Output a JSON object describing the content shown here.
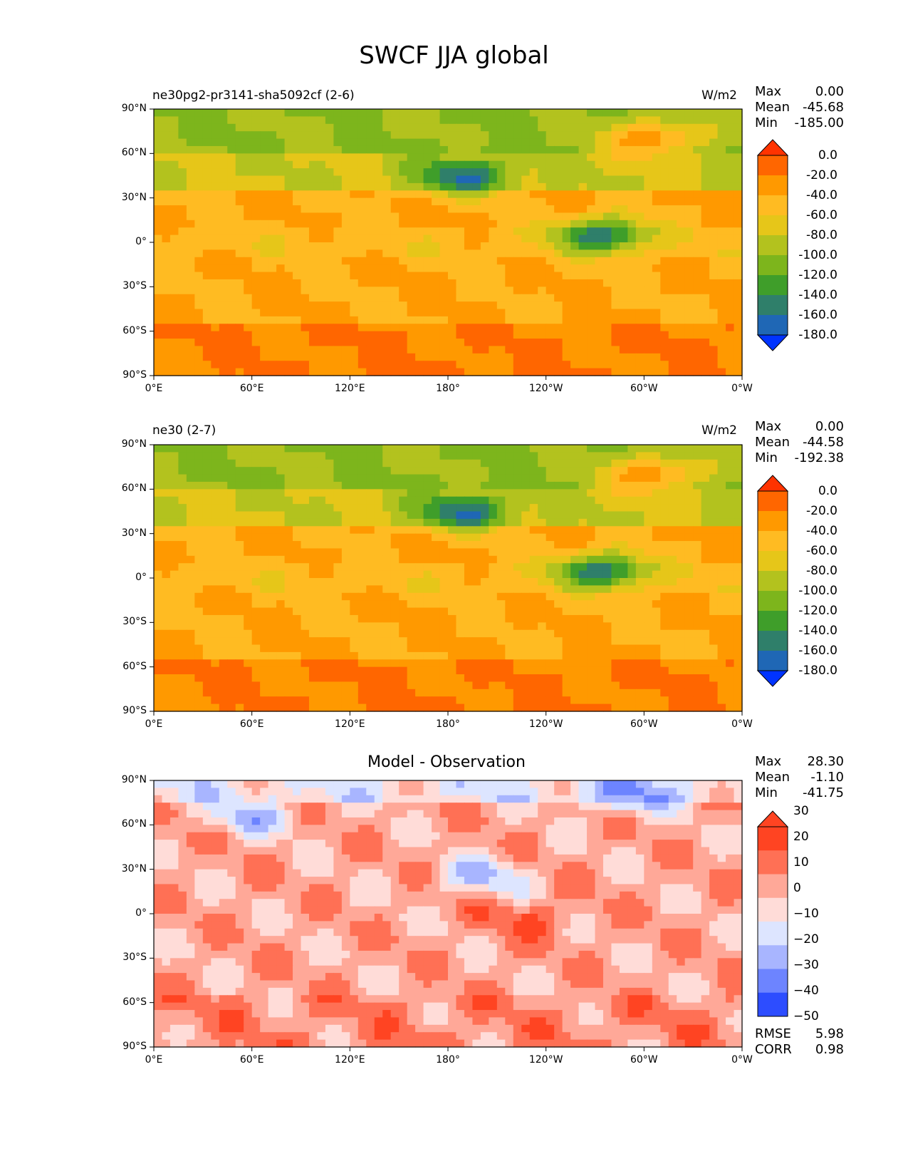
{
  "figure": {
    "title": "SWCF JJA global"
  },
  "axes": {
    "lat_ticks": [
      "90°N",
      "60°N",
      "30°N",
      "0°",
      "30°S",
      "60°S",
      "90°S"
    ],
    "lon_ticks": [
      "0°E",
      "60°E",
      "120°E",
      "180°",
      "120°W",
      "60°W",
      "0°W"
    ]
  },
  "panels": [
    {
      "title": "ne30pg2-pr3141-sha5092cf (2-6)",
      "units": "W/m2",
      "stats": {
        "max_label": "Max",
        "max": "0.00",
        "mean_label": "Mean",
        "mean": "-45.68",
        "min_label": "Min",
        "min": "-185.00"
      },
      "colorbar": {
        "labels": [
          "0.0",
          "-20.0",
          "-40.0",
          "-60.0",
          "-80.0",
          "-100.0",
          "-120.0",
          "-140.0",
          "-160.0",
          "-180.0"
        ],
        "colors": [
          "#ff3300",
          "#ff6600",
          "#ff9900",
          "#ffbb22",
          "#e6c619",
          "#b3c21e",
          "#7db51c",
          "#3f9e2a",
          "#2f7f6a",
          "#1f67b5",
          "#0033ff"
        ]
      }
    },
    {
      "title": "ne30 (2-7)",
      "units": "W/m2",
      "stats": {
        "max_label": "Max",
        "max": "0.00",
        "mean_label": "Mean",
        "mean": "-44.58",
        "min_label": "Min",
        "min": "-192.38"
      },
      "colorbar": {
        "labels": [
          "0.0",
          "-20.0",
          "-40.0",
          "-60.0",
          "-80.0",
          "-100.0",
          "-120.0",
          "-140.0",
          "-160.0",
          "-180.0"
        ],
        "colors": [
          "#ff3300",
          "#ff6600",
          "#ff9900",
          "#ffbb22",
          "#e6c619",
          "#b3c21e",
          "#7db51c",
          "#3f9e2a",
          "#2f7f6a",
          "#1f67b5",
          "#0033ff"
        ]
      }
    },
    {
      "title": "Model - Observation",
      "stats": {
        "max_label": "Max",
        "max": "28.30",
        "mean_label": "Mean",
        "mean": "-1.10",
        "min_label": "Min",
        "min": "-41.75"
      },
      "colorbar": {
        "labels": [
          "30",
          "20",
          "10",
          "0",
          "−10",
          "−20",
          "−30",
          "−40",
          "−50"
        ],
        "colors": [
          "#ff4422",
          "#ff7055",
          "#ffa898",
          "#ffdcd8",
          "#dde5ff",
          "#a8b5ff",
          "#6d84ff",
          "#2d4dff"
        ]
      },
      "metrics": {
        "rmse_label": "RMSE",
        "rmse": "5.98",
        "corr_label": "CORR",
        "corr": "0.98"
      }
    }
  ],
  "chart_data": [
    {
      "type": "heatmap",
      "title": "ne30pg2-pr3141-sha5092cf (2-6)",
      "units": "W/m2",
      "xlabel": "",
      "ylabel": "",
      "xlim": [
        0,
        360
      ],
      "ylim": [
        -90,
        90
      ],
      "bands": [
        {
          "lat_range": [
            60,
            90
          ],
          "typical": -100
        },
        {
          "lat_range": [
            35,
            60
          ],
          "typical": -80
        },
        {
          "lat_range": [
            10,
            35
          ],
          "typical": -40
        },
        {
          "lat_range": [
            -10,
            10
          ],
          "typical": -50
        },
        {
          "lat_range": [
            -55,
            -10
          ],
          "typical": -40
        },
        {
          "lat_range": [
            -90,
            -55
          ],
          "typical": -20
        }
      ],
      "features": [
        {
          "lon": 190,
          "lat": 45,
          "value": -160
        },
        {
          "lon": 305,
          "lat": 70,
          "value": -20
        },
        {
          "lon": 275,
          "lat": 5,
          "value": -160
        }
      ],
      "stats": {
        "max": 0.0,
        "mean": -45.68,
        "min": -185.0
      }
    },
    {
      "type": "heatmap",
      "title": "ne30 (2-7)",
      "units": "W/m2",
      "xlabel": "",
      "ylabel": "",
      "xlim": [
        0,
        360
      ],
      "ylim": [
        -90,
        90
      ],
      "bands": [
        {
          "lat_range": [
            60,
            90
          ],
          "typical": -100
        },
        {
          "lat_range": [
            35,
            60
          ],
          "typical": -80
        },
        {
          "lat_range": [
            10,
            35
          ],
          "typical": -40
        },
        {
          "lat_range": [
            -10,
            10
          ],
          "typical": -50
        },
        {
          "lat_range": [
            -55,
            -10
          ],
          "typical": -40
        },
        {
          "lat_range": [
            -90,
            -55
          ],
          "typical": -20
        }
      ],
      "features": [
        {
          "lon": 190,
          "lat": 45,
          "value": -160
        },
        {
          "lon": 305,
          "lat": 70,
          "value": -20
        },
        {
          "lon": 275,
          "lat": 5,
          "value": -160
        }
      ],
      "stats": {
        "max": 0.0,
        "mean": -44.58,
        "min": -192.38
      }
    },
    {
      "type": "heatmap",
      "title": "Model - Observation",
      "xlabel": "",
      "ylabel": "",
      "xlim": [
        0,
        360
      ],
      "ylim": [
        -90,
        90
      ],
      "bands": [
        {
          "lat_range": [
            75,
            90
          ],
          "typical": -10
        },
        {
          "lat_range": [
            -55,
            75
          ],
          "typical": 5
        },
        {
          "lat_range": [
            -90,
            -55
          ],
          "typical": 10
        }
      ],
      "features": [
        {
          "lon": 60,
          "lat": 66,
          "value": -20
        },
        {
          "lon": 290,
          "lat": 80,
          "value": -30
        },
        {
          "lon": 200,
          "lat": 25,
          "value": -20
        },
        {
          "lon": 230,
          "lat": -3,
          "value": 20
        }
      ],
      "stats": {
        "max": 28.3,
        "mean": -1.1,
        "min": -41.75
      },
      "metrics": {
        "rmse": 5.98,
        "corr": 0.98
      }
    }
  ]
}
